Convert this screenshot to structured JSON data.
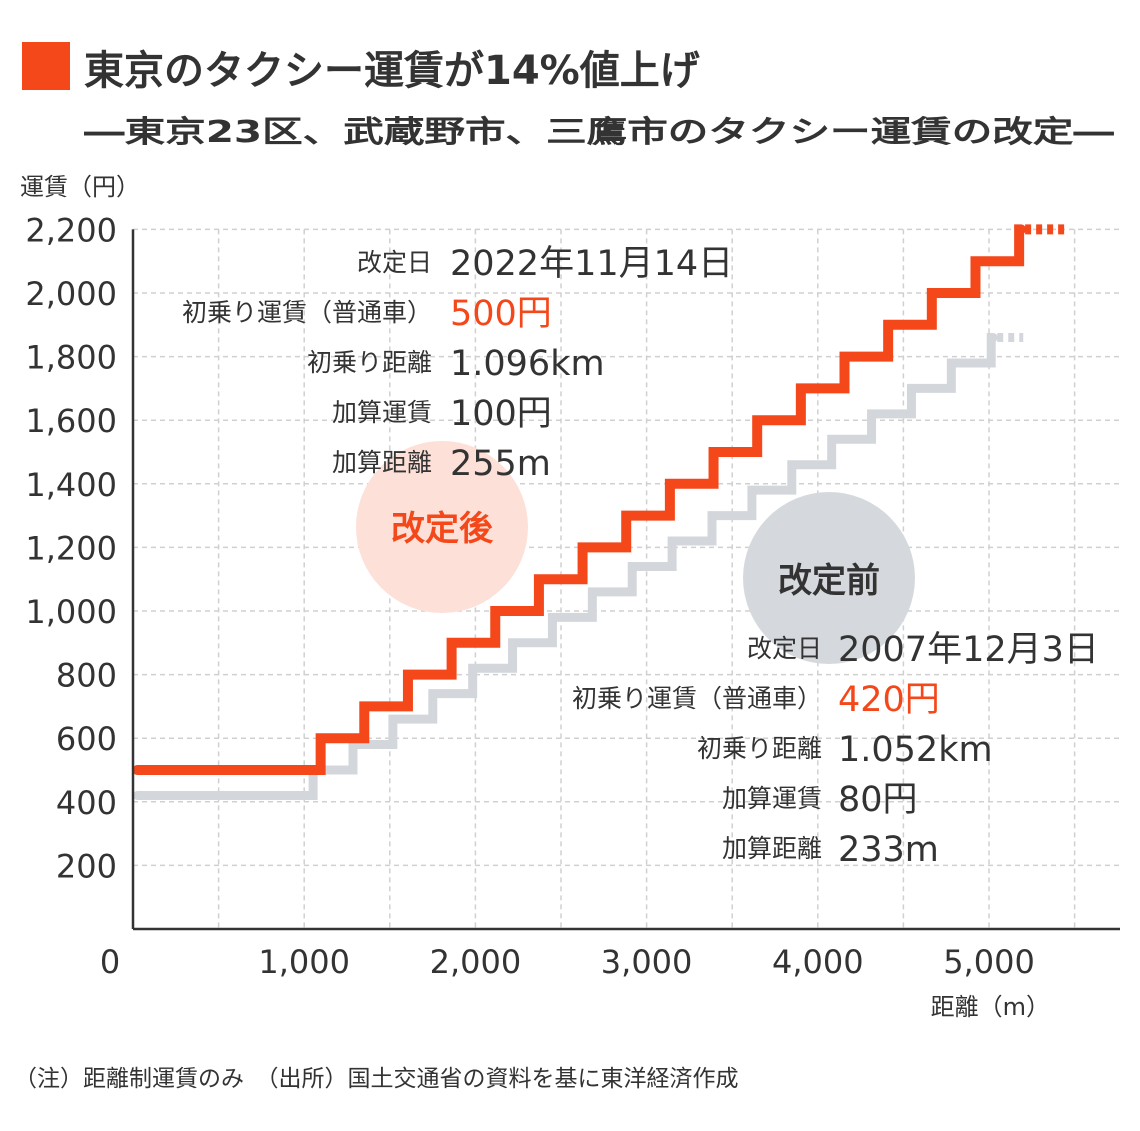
{
  "title": "東京のタクシー運賃が14%値上げ",
  "subtitle": "―東京23区、武蔵野市、三鷹市のタクシー運賃の改定―",
  "footnote": "（注）距離制運賃のみ　（出所）国土交通省の資料を基に東洋経済作成",
  "colors": {
    "accent": "#f4471a",
    "before": "#d3d7dc",
    "after_circle": "#fde0d7",
    "before_circle": "#d5d9de",
    "text": "#333333"
  },
  "chart_data": {
    "type": "line",
    "step": true,
    "ylabel": "運賃（円）",
    "xlabel": "距離（m）",
    "xlim": [
      0,
      5750
    ],
    "ylim": [
      0,
      2200
    ],
    "x_ticks": [
      0,
      1000,
      2000,
      3000,
      4000,
      5000
    ],
    "x_tick_labels": [
      "0",
      "1,000",
      "2,000",
      "3,000",
      "4,000",
      "5,000"
    ],
    "y_ticks": [
      200,
      400,
      600,
      800,
      1000,
      1200,
      1400,
      1600,
      1800,
      2000,
      2200
    ],
    "y_tick_labels": [
      "200",
      "400",
      "600",
      "800",
      "1,000",
      "1,200",
      "1,400",
      "1,600",
      "1,800",
      "2,000",
      "2,200"
    ],
    "grid": true,
    "series": [
      {
        "name": "改定前",
        "color": "#d3d7dc",
        "x": [
          0,
          1052,
          1285,
          1518,
          1751,
          1984,
          2217,
          2450,
          2683,
          2916,
          3149,
          3382,
          3615,
          3848,
          4081,
          4314,
          4547,
          4780,
          5013
        ],
        "y": [
          420,
          500,
          580,
          660,
          740,
          820,
          900,
          980,
          1060,
          1140,
          1220,
          1300,
          1380,
          1460,
          1540,
          1620,
          1700,
          1780,
          1860
        ],
        "x_end": 5200,
        "info": {
          "rows": [
            {
              "label": "改定日",
              "value": "2007年12月3日"
            },
            {
              "label": "初乗り運賃（普通車）",
              "value": "420円",
              "highlight": true
            },
            {
              "label": "初乗り距離",
              "value": "1.052km"
            },
            {
              "label": "加算運賃",
              "value": "80円"
            },
            {
              "label": "加算距離",
              "value": "233m"
            }
          ]
        }
      },
      {
        "name": "改定後",
        "color": "#f4471a",
        "x": [
          0,
          1096,
          1351,
          1606,
          1861,
          2116,
          2371,
          2626,
          2881,
          3136,
          3391,
          3646,
          3901,
          4156,
          4411,
          4666,
          4921,
          5176
        ],
        "y": [
          500,
          600,
          700,
          800,
          900,
          1000,
          1100,
          1200,
          1300,
          1400,
          1500,
          1600,
          1700,
          1800,
          1900,
          2000,
          2100,
          2200
        ],
        "x_end": 5450,
        "info": {
          "rows": [
            {
              "label": "改定日",
              "value": "2022年11月14日"
            },
            {
              "label": "初乗り運賃（普通車）",
              "value": "500円",
              "highlight": true
            },
            {
              "label": "初乗り距離",
              "value": "1.096km"
            },
            {
              "label": "加算運賃",
              "value": "100円"
            },
            {
              "label": "加算距離",
              "value": "255m"
            }
          ]
        }
      }
    ]
  }
}
